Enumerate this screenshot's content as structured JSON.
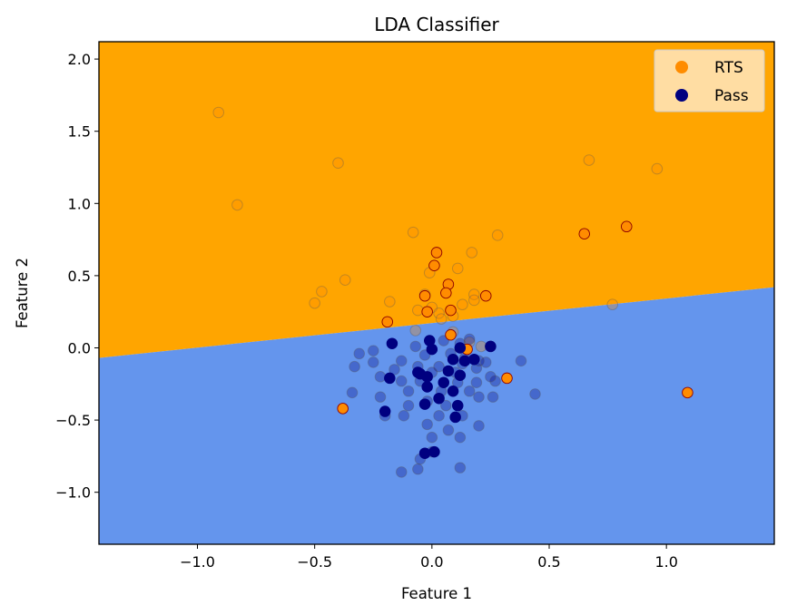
{
  "chart_data": {
    "type": "scatter",
    "title": "LDA Classifier",
    "xlabel": "Feature 1",
    "ylabel": "Feature 2",
    "xlim": [
      -1.42,
      1.46
    ],
    "ylim": [
      -1.36,
      2.12
    ],
    "x_ticks": [
      -1.0,
      -0.5,
      0.0,
      0.5,
      1.0
    ],
    "x_tick_labels": [
      "−1.0",
      "−0.5",
      "0.0",
      "0.5",
      "1.0"
    ],
    "y_ticks": [
      -1.0,
      -0.5,
      0.0,
      0.5,
      1.0,
      1.5,
      2.0
    ],
    "y_tick_labels": [
      "−1.0",
      "−0.5",
      "0.0",
      "0.5",
      "1.0",
      "1.5",
      "2.0"
    ],
    "grid": false,
    "legend_position": "top-right",
    "regions": {
      "boundary_line": [
        [
          -1.42,
          -0.07
        ],
        [
          1.46,
          0.42
        ]
      ],
      "upper_class": "RTS",
      "lower_class": "Pass",
      "upper_color": "#FFA500",
      "lower_color": "#6495ED"
    },
    "series": [
      {
        "name": "RTS",
        "color": "#FF8C00",
        "edge_color": "#8B0000",
        "legend_color": "#FF8C00",
        "train_points": [
          [
            -0.91,
            1.63
          ],
          [
            -0.4,
            1.28
          ],
          [
            -0.83,
            0.99
          ],
          [
            0.67,
            1.3
          ],
          [
            0.96,
            1.24
          ],
          [
            -0.08,
            0.8
          ],
          [
            0.28,
            0.78
          ],
          [
            0.17,
            0.66
          ],
          [
            0.11,
            0.55
          ],
          [
            -0.01,
            0.52
          ],
          [
            -0.37,
            0.47
          ],
          [
            -0.47,
            0.39
          ],
          [
            -0.5,
            0.31
          ],
          [
            -0.18,
            0.32
          ],
          [
            0.0,
            0.28
          ],
          [
            0.18,
            0.37
          ],
          [
            0.13,
            0.3
          ],
          [
            0.18,
            0.33
          ],
          [
            -0.03,
            0.37
          ],
          [
            0.77,
            0.3
          ],
          [
            -0.06,
            0.26
          ],
          [
            0.03,
            0.24
          ],
          [
            0.04,
            0.2
          ],
          [
            0.09,
            0.22
          ],
          [
            -0.07,
            0.12
          ],
          [
            0.16,
            0.04
          ],
          [
            0.21,
            0.01
          ],
          [
            0.09,
            0.11
          ]
        ],
        "test_points": [
          [
            0.02,
            0.66
          ],
          [
            0.01,
            0.57
          ],
          [
            0.07,
            0.44
          ],
          [
            0.06,
            0.38
          ],
          [
            -0.03,
            0.36
          ],
          [
            0.23,
            0.36
          ],
          [
            0.08,
            0.26
          ],
          [
            -0.02,
            0.25
          ],
          [
            -0.19,
            0.18
          ],
          [
            0.08,
            0.09
          ],
          [
            0.15,
            -0.01
          ],
          [
            0.32,
            -0.21
          ],
          [
            -0.38,
            -0.42
          ],
          [
            1.09,
            -0.31
          ],
          [
            0.65,
            0.79
          ],
          [
            0.83,
            0.84
          ]
        ]
      },
      {
        "name": "Pass",
        "color": "#000080",
        "edge_color": "#000080",
        "legend_color": "#000080",
        "train_points": [
          [
            -0.31,
            -0.04
          ],
          [
            -0.25,
            -0.02
          ],
          [
            -0.33,
            -0.13
          ],
          [
            -0.25,
            -0.1
          ],
          [
            -0.34,
            -0.31
          ],
          [
            -0.13,
            -0.86
          ],
          [
            -0.06,
            -0.84
          ],
          [
            0.12,
            -0.83
          ],
          [
            -0.05,
            -0.77
          ],
          [
            0.0,
            -0.72
          ],
          [
            0.12,
            -0.62
          ],
          [
            0.0,
            -0.62
          ],
          [
            0.07,
            -0.57
          ],
          [
            0.2,
            -0.54
          ],
          [
            -0.02,
            -0.53
          ],
          [
            -0.2,
            -0.47
          ],
          [
            -0.12,
            -0.47
          ],
          [
            0.03,
            -0.47
          ],
          [
            0.13,
            -0.47
          ],
          [
            -0.22,
            -0.34
          ],
          [
            -0.1,
            -0.4
          ],
          [
            0.26,
            -0.34
          ],
          [
            0.2,
            -0.34
          ],
          [
            0.16,
            -0.3
          ],
          [
            0.04,
            -0.3
          ],
          [
            -0.05,
            -0.23
          ],
          [
            -0.13,
            -0.23
          ],
          [
            0.27,
            -0.23
          ],
          [
            0.25,
            -0.2
          ],
          [
            0.38,
            -0.09
          ],
          [
            0.44,
            -0.32
          ],
          [
            0.19,
            -0.14
          ],
          [
            0.1,
            -0.17
          ],
          [
            0.03,
            -0.13
          ],
          [
            -0.03,
            -0.05
          ],
          [
            0.08,
            -0.04
          ],
          [
            0.12,
            0.03
          ],
          [
            0.05,
            0.05
          ],
          [
            -0.07,
            0.01
          ],
          [
            -0.13,
            -0.09
          ],
          [
            -0.16,
            -0.15
          ],
          [
            -0.22,
            -0.2
          ],
          [
            0.16,
            0.06
          ],
          [
            0.25,
            0.01
          ],
          [
            0.14,
            -0.07
          ],
          [
            0.2,
            -0.09
          ],
          [
            -0.02,
            -0.37
          ],
          [
            0.06,
            -0.4
          ],
          [
            0.11,
            -0.24
          ],
          [
            -0.1,
            -0.3
          ],
          [
            0.19,
            -0.24
          ],
          [
            0.13,
            -0.11
          ],
          [
            0.0,
            -0.17
          ],
          [
            -0.06,
            -0.13
          ],
          [
            0.23,
            -0.1
          ]
        ],
        "test_points": [
          [
            -0.17,
            0.03
          ],
          [
            -0.01,
            0.05
          ],
          [
            0.0,
            -0.01
          ],
          [
            0.12,
            0.0
          ],
          [
            0.25,
            0.01
          ],
          [
            0.09,
            -0.08
          ],
          [
            0.18,
            -0.08
          ],
          [
            -0.18,
            -0.21
          ],
          [
            -0.05,
            -0.18
          ],
          [
            -0.02,
            -0.2
          ],
          [
            0.12,
            -0.19
          ],
          [
            0.07,
            -0.16
          ],
          [
            0.05,
            -0.24
          ],
          [
            -0.02,
            -0.27
          ],
          [
            0.09,
            -0.3
          ],
          [
            0.03,
            -0.35
          ],
          [
            -0.03,
            -0.39
          ],
          [
            0.11,
            -0.4
          ],
          [
            -0.2,
            -0.44
          ],
          [
            0.1,
            -0.48
          ],
          [
            -0.03,
            -0.73
          ],
          [
            0.01,
            -0.72
          ],
          [
            -0.06,
            -0.17
          ],
          [
            0.14,
            -0.09
          ]
        ]
      }
    ]
  }
}
